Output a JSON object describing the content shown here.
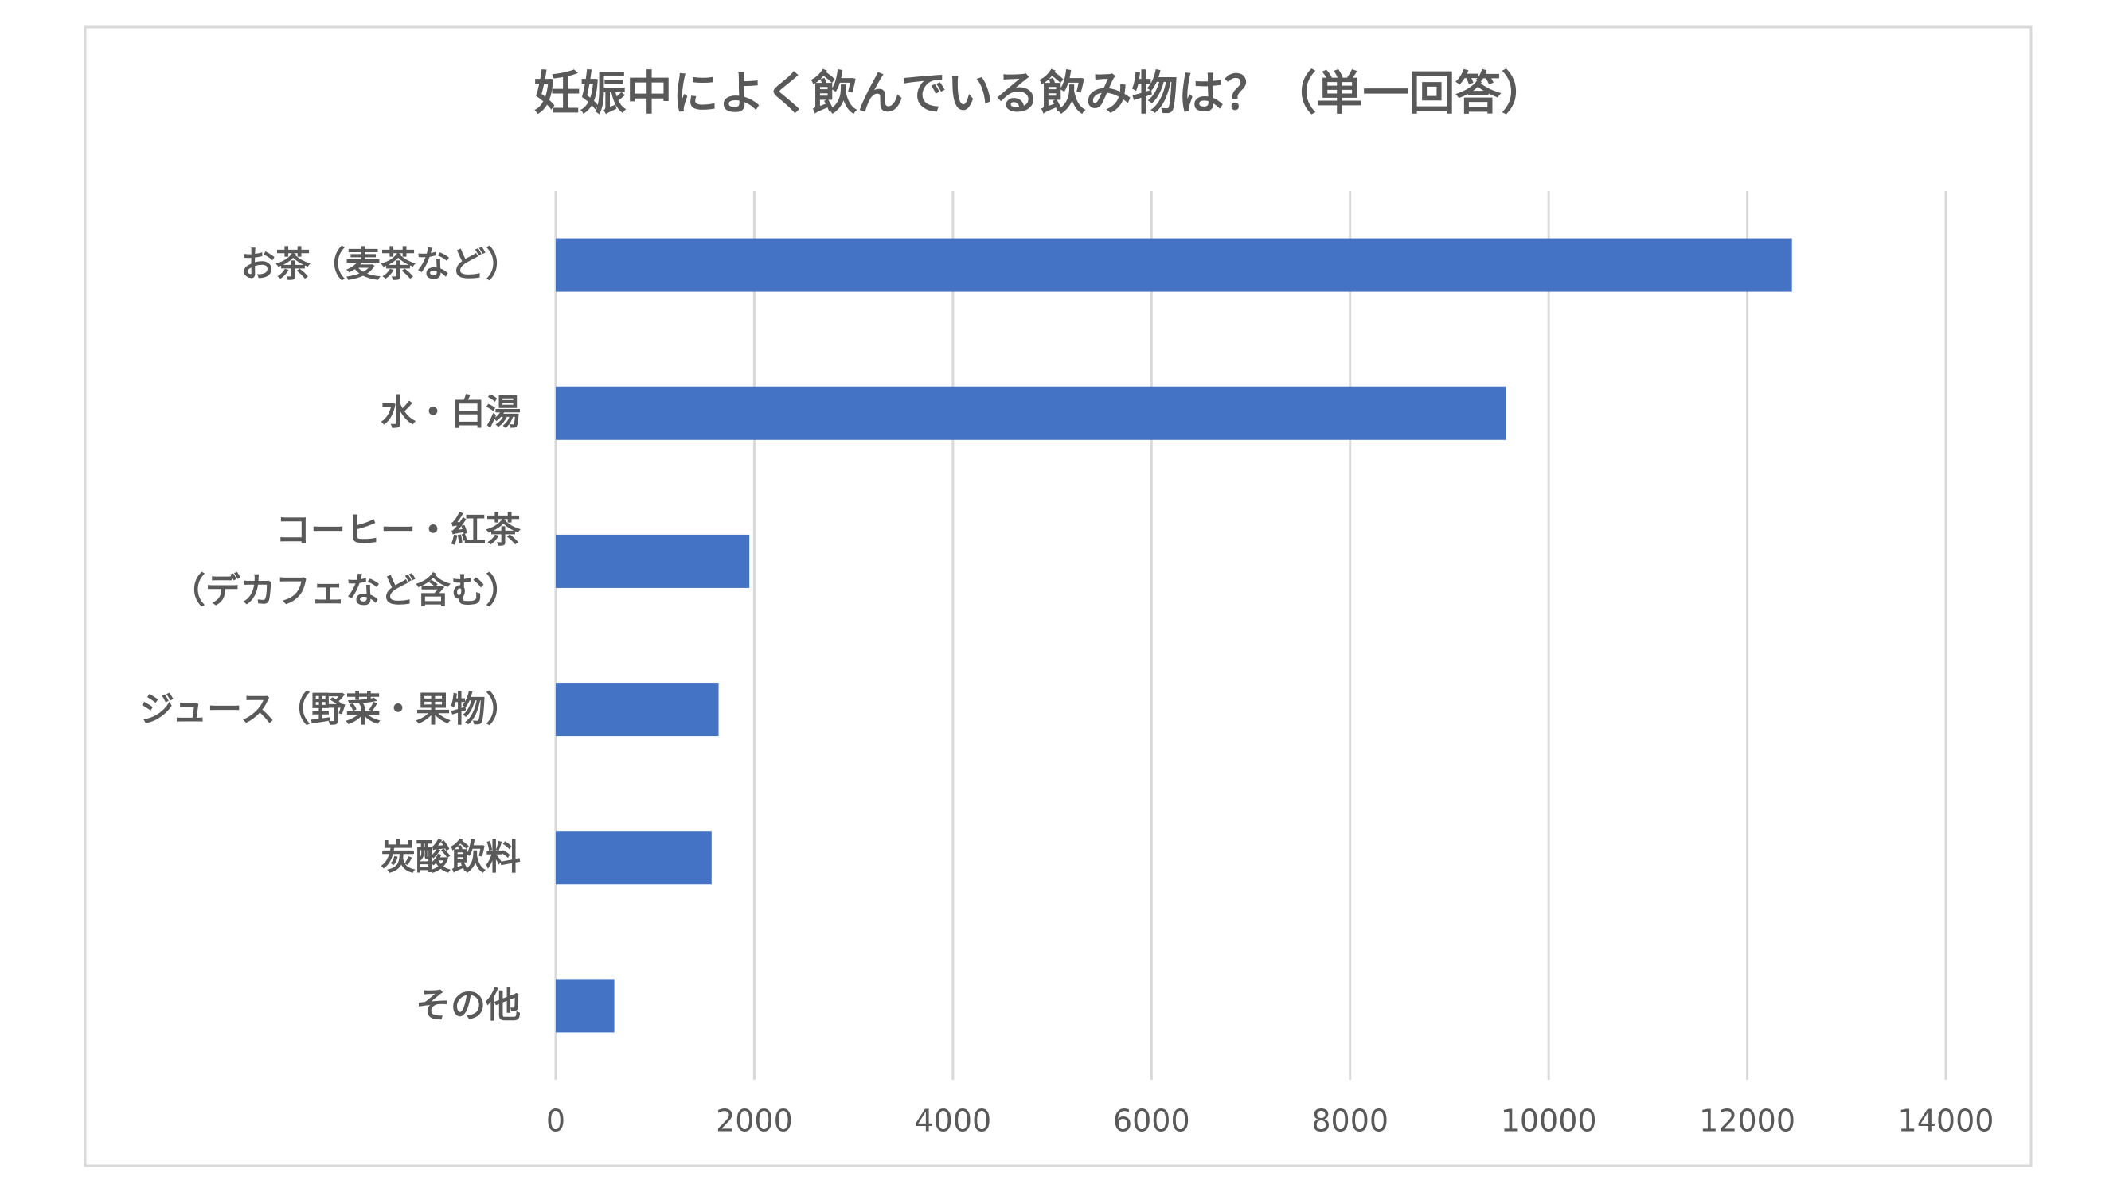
{
  "chart_data": {
    "type": "bar",
    "orientation": "horizontal",
    "title": "妊娠中によく飲んでいる飲み物は？（単一回答）",
    "categories": [
      "お茶（麦茶など）",
      "水・白湯",
      "コーヒー・紅茶\n（デカフェなど含む）",
      "ジュース（野菜・果物）",
      "炭酸飲料",
      "その他"
    ],
    "values": [
      12450,
      9570,
      1950,
      1640,
      1570,
      590
    ],
    "color": "#4472c4",
    "xlim": [
      0,
      14000
    ],
    "xticks": [
      0,
      2000,
      4000,
      6000,
      8000,
      10000,
      12000,
      14000
    ],
    "grid": true
  }
}
